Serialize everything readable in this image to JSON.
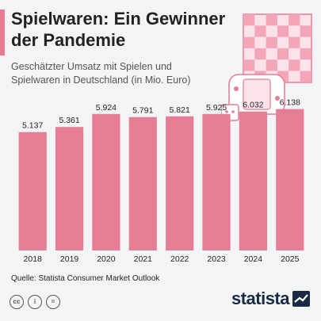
{
  "header": {
    "title": "Spielwaren: Ein Gewinner der Pandemie",
    "subtitle": "Geschätzter Umsatz mit Spielen und Spielwaren in Deutschland (in Mio. Euro)"
  },
  "footer": {
    "source": "Quelle: Statista Consumer Market Outlook",
    "brand": "statista"
  },
  "license_icons": [
    "cc-icon",
    "by-icon",
    "nd-icon"
  ],
  "colors": {
    "bar": "#e57d95",
    "accent": "#e57d95",
    "illustration": "#f5b5c3"
  },
  "chart_data": {
    "type": "bar",
    "categories": [
      "2018",
      "2019",
      "2020",
      "2021",
      "2022",
      "2023",
      "2024",
      "2025"
    ],
    "values": [
      5137,
      5361,
      5924,
      5791,
      5821,
      5925,
      6032,
      6138
    ],
    "value_labels": [
      "5.137",
      "5.361",
      "5.924",
      "5.791",
      "5.821",
      "5.925",
      "6.032",
      "6.138"
    ],
    "title": "Spielwaren: Ein Gewinner der Pandemie",
    "subtitle": "Geschätzter Umsatz mit Spielen und Spielwaren in Deutschland (in Mio. Euro)",
    "xlabel": "",
    "ylabel": "",
    "ylim": [
      0,
      6400
    ],
    "grid": false,
    "legend": "none"
  }
}
